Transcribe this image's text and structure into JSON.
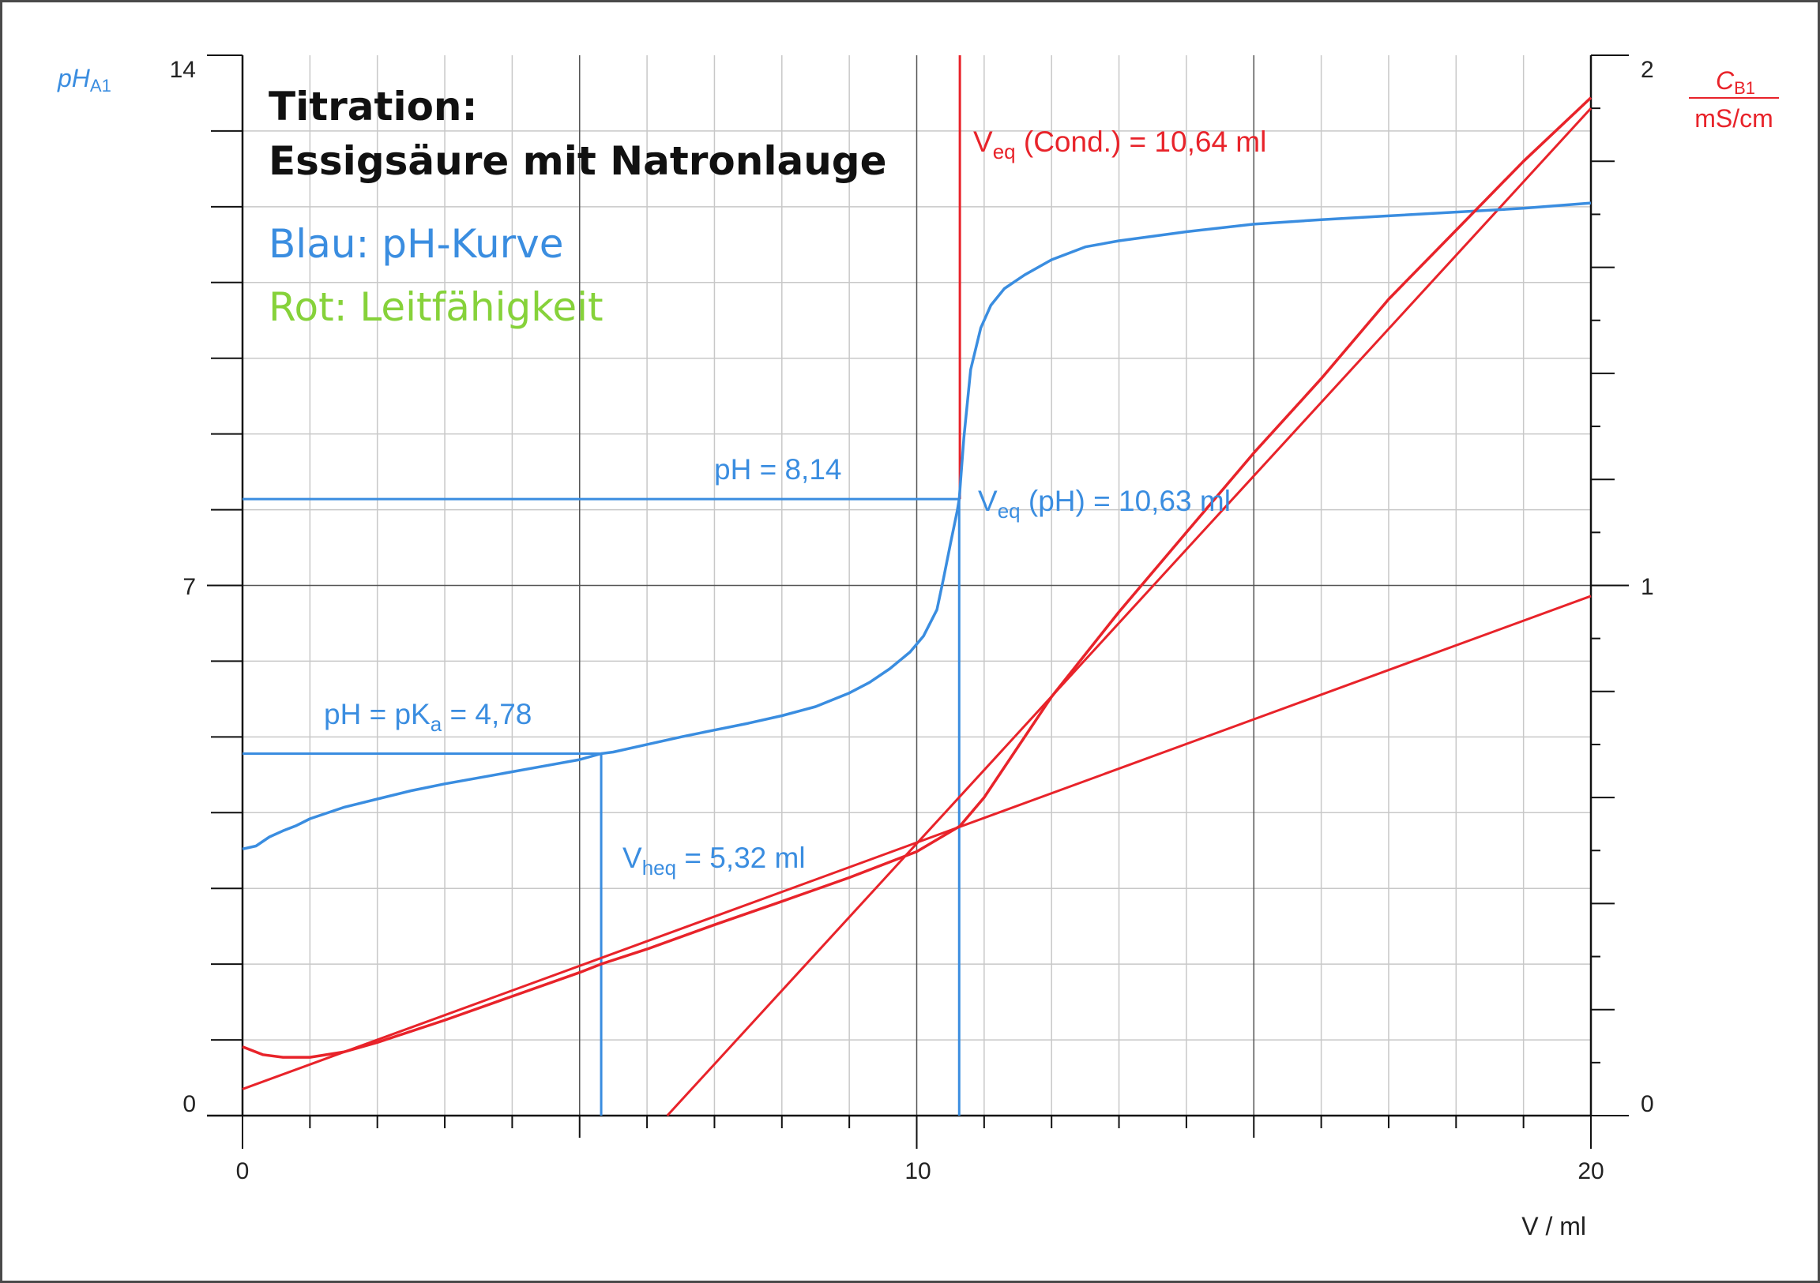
{
  "chart_data": {
    "type": "line",
    "title_line1": "Titration:",
    "title_line2": "Essigsäure mit Natronlauge",
    "legend_blue": "Blau: pH-Kurve",
    "legend_red": "Rot: Leitfähigkeit",
    "xlabel": "V / ml",
    "ylabel_left_main": "pH",
    "ylabel_left_sub": "A1",
    "ylabel_right_main": "C",
    "ylabel_right_sub": "B1",
    "ylabel_right_unit": "mS/cm",
    "xlim": [
      0,
      20
    ],
    "ylim_left": [
      0,
      14
    ],
    "ylim_right": [
      0,
      2
    ],
    "x_ticks": [
      "0",
      "10",
      "20"
    ],
    "y_left_ticks": [
      "0",
      "7",
      "14"
    ],
    "y_right_ticks": [
      "0",
      "1",
      "2"
    ],
    "grid": true,
    "colors": {
      "blue": "#3a8de0",
      "red": "#e8232a",
      "green": "#86d23a",
      "grid": "#c8c8c8",
      "grid_major": "#555555"
    },
    "series": [
      {
        "name": "pH",
        "axis": "left",
        "x": [
          0,
          0.2,
          0.4,
          0.6,
          0.8,
          1.0,
          1.5,
          2.0,
          2.5,
          3.0,
          3.5,
          4.0,
          4.5,
          5.0,
          5.32,
          5.5,
          6.0,
          6.5,
          7.0,
          7.5,
          8.0,
          8.5,
          9.0,
          9.3,
          9.6,
          9.9,
          10.1,
          10.3,
          10.4,
          10.5,
          10.6,
          10.63,
          10.7,
          10.8,
          10.95,
          11.1,
          11.3,
          11.6,
          12.0,
          12.5,
          13.0,
          14.0,
          15.0,
          16.0,
          17.0,
          18.0,
          19.0,
          20.0
        ],
        "y": [
          3.52,
          3.56,
          3.68,
          3.76,
          3.83,
          3.92,
          4.07,
          4.18,
          4.29,
          4.38,
          4.46,
          4.54,
          4.62,
          4.7,
          4.78,
          4.8,
          4.9,
          5.0,
          5.09,
          5.18,
          5.28,
          5.4,
          5.58,
          5.72,
          5.9,
          6.12,
          6.33,
          6.68,
          7.1,
          7.55,
          7.98,
          8.14,
          8.95,
          9.85,
          10.4,
          10.7,
          10.92,
          11.1,
          11.3,
          11.47,
          11.55,
          11.67,
          11.77,
          11.83,
          11.88,
          11.93,
          11.98,
          12.05
        ]
      },
      {
        "name": "Leitfähigkeit",
        "axis": "right",
        "x": [
          0,
          0.3,
          0.6,
          1.0,
          1.5,
          2.0,
          3.0,
          4.0,
          5.0,
          5.32,
          6.0,
          7.0,
          8.0,
          9.0,
          10.0,
          10.64,
          11.0,
          12.0,
          13.0,
          14.0,
          15.0,
          16.0,
          17.0,
          18.0,
          19.0,
          20.0
        ],
        "y": [
          0.13,
          0.115,
          0.11,
          0.11,
          0.12,
          0.138,
          0.18,
          0.225,
          0.27,
          0.286,
          0.314,
          0.36,
          0.404,
          0.449,
          0.498,
          0.546,
          0.6,
          0.79,
          0.95,
          1.1,
          1.25,
          1.39,
          1.54,
          1.67,
          1.8,
          1.92
        ]
      }
    ],
    "fit_lines": [
      {
        "x": [
          0,
          20
        ],
        "y": [
          0.05,
          0.98
        ]
      },
      {
        "x": [
          6.3,
          20
        ],
        "y": [
          0.0,
          1.9
        ]
      }
    ],
    "annotations": {
      "veq_cond": {
        "prefix": "V",
        "sub": "eq",
        "text": " (Cond.) = 10,64 ml",
        "x": 10.64
      },
      "veq_ph": {
        "prefix": "V",
        "sub": "eq",
        "text": " (pH) = 10,63 ml",
        "x": 10.63,
        "ph": 8.14
      },
      "ph_eq": {
        "text": "pH = 8,14"
      },
      "ph_pka": {
        "prefix": "pH = pK",
        "sub": "a",
        "text": " = 4,78",
        "x": 5.32,
        "ph": 4.78
      },
      "vheq": {
        "prefix": "V",
        "sub": "heq",
        "text": " = 5,32 ml"
      }
    }
  }
}
